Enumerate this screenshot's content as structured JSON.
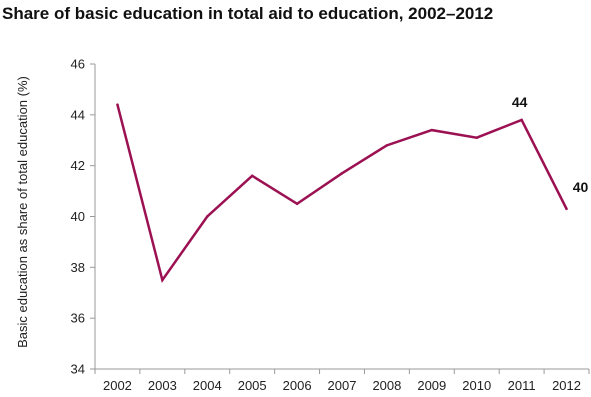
{
  "chart_data": {
    "type": "line",
    "title": "Share of basic education in total aid to education, 2002–2012",
    "xlabel": "",
    "ylabel": "Basic education as share of total education (%)",
    "ylim": [
      34,
      46
    ],
    "yticks": [
      34,
      36,
      38,
      40,
      42,
      44,
      46
    ],
    "categories": [
      "2002",
      "2003",
      "2004",
      "2005",
      "2006",
      "2007",
      "2008",
      "2009",
      "2010",
      "2011",
      "2012"
    ],
    "series": [
      {
        "values": [
          44.4,
          37.5,
          40.0,
          41.6,
          40.5,
          41.7,
          42.8,
          43.4,
          43.1,
          43.8,
          40.3
        ]
      }
    ],
    "annotations": [
      {
        "category": "2011",
        "text": "44"
      },
      {
        "category": "2012",
        "text": "40"
      }
    ],
    "grid": false,
    "line_color": "#9b1152"
  }
}
